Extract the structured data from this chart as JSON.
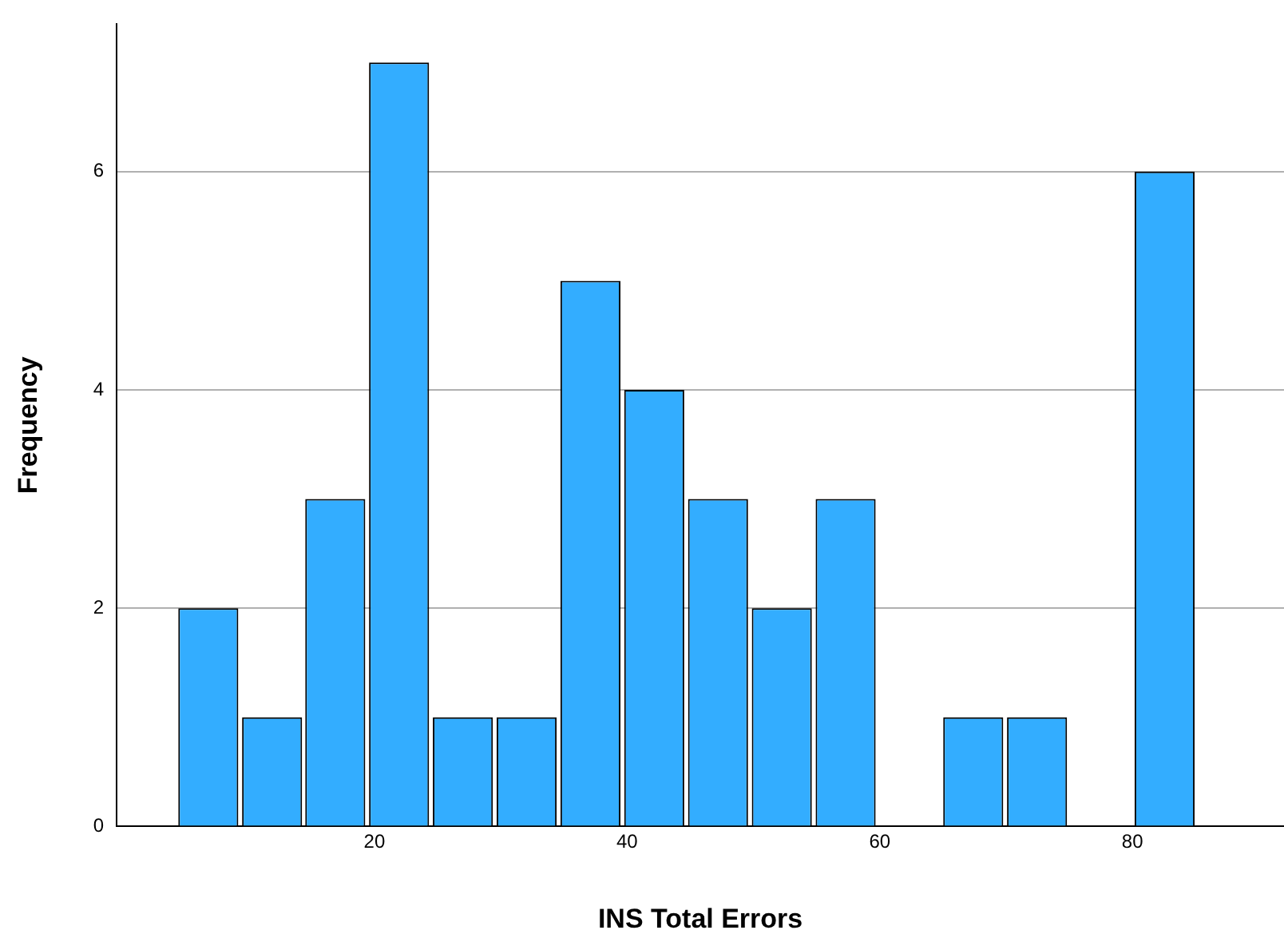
{
  "chart_data": {
    "type": "histogram",
    "xlabel": "INS Total Errors",
    "ylabel": "Frequency",
    "bins": [
      4.3,
      9.4,
      14.4,
      19.4,
      24.5,
      29.5,
      34.6,
      39.6,
      44.7,
      49.7,
      54.8,
      59.8,
      64.9,
      69.9,
      75.0,
      80.0,
      85.1
    ],
    "values": [
      2,
      1,
      3,
      7,
      1,
      1,
      5,
      4,
      3,
      2,
      3,
      0,
      1,
      1,
      0,
      6
    ],
    "color": "#33adff",
    "xlim": [
      -0.4,
      92
    ],
    "xticks": [
      20,
      40,
      60,
      80
    ],
    "ylim": [
      0,
      7.35
    ],
    "yticks": [
      0,
      2,
      4,
      6
    ],
    "grid": "y",
    "legend": false
  }
}
